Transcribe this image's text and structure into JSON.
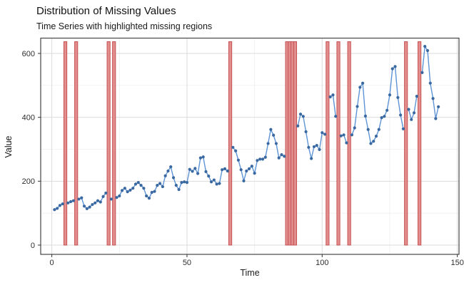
{
  "header": {
    "title": "Distribution of Missing Values",
    "subtitle": "Time Series with highlighted missing regions"
  },
  "chart_data": {
    "type": "line",
    "title": "Distribution of Missing Values",
    "subtitle": "Time Series with highlighted missing regions",
    "xlabel": "Time",
    "ylabel": "Value",
    "xlim": [
      -5,
      151
    ],
    "ylim": [
      -30,
      650
    ],
    "x_major_ticks": [
      0,
      50,
      100,
      150
    ],
    "x_minor_gridlines": [
      25,
      75,
      125
    ],
    "y_major_ticks": [
      0,
      200,
      400,
      600
    ],
    "y_minor_gridlines": [
      100,
      300,
      500
    ],
    "grid": "on",
    "legend": "none",
    "x_start": 1,
    "x_end": 143,
    "missing_time_points": [
      5,
      9,
      21,
      23,
      66,
      87,
      88,
      89,
      90,
      102,
      106,
      110,
      131,
      136
    ],
    "series": [
      {
        "name": "Value",
        "x_is_sequence_from": 1,
        "values": [
          111,
          115,
          124,
          129,
          null,
          132,
          136,
          139,
          null,
          144,
          148,
          122,
          114,
          119,
          127,
          132,
          139,
          135,
          152,
          163,
          null,
          144,
          null,
          149,
          154,
          171,
          178,
          167,
          172,
          178,
          191,
          196,
          187,
          178,
          154,
          147,
          165,
          168,
          187,
          193,
          183,
          217,
          232,
          245,
          211,
          187,
          174,
          196,
          198,
          196,
          237,
          231,
          240,
          224,
          273,
          276,
          230,
          216,
          198,
          204,
          191,
          193,
          236,
          239,
          232,
          null,
          306,
          295,
          266,
          236,
          201,
          232,
          239,
          247,
          225,
          265,
          269,
          269,
          275,
          318,
          362,
          344,
          318,
          273,
          283,
          278,
          null,
          null,
          null,
          null,
          373,
          410,
          403,
          355,
          306,
          271,
          308,
          312,
          299,
          352,
          347,
          null,
          464,
          470,
          403,
          null,
          342,
          345,
          320,
          null,
          345,
          367,
          434,
          494,
          507,
          404,
          362,
          318,
          325,
          341,
          362,
          399,
          403,
          422,
          470,
          552,
          559,
          462,
          407,
          364,
          null,
          425,
          393,
          414,
          466,
          null,
          540,
          622,
          609,
          507,
          459,
          396,
          433
        ]
      }
    ],
    "colors": {
      "point": "#3a68a0",
      "line": "#5e94d6",
      "missing_fill": "#e28e8e",
      "missing_stroke": "#c65353",
      "grid_major": "#dbdbdb",
      "grid_minor": "#efefef",
      "panel_border": "#454545",
      "tick_label": "#2e2e2e",
      "background": "#ffffff"
    }
  }
}
